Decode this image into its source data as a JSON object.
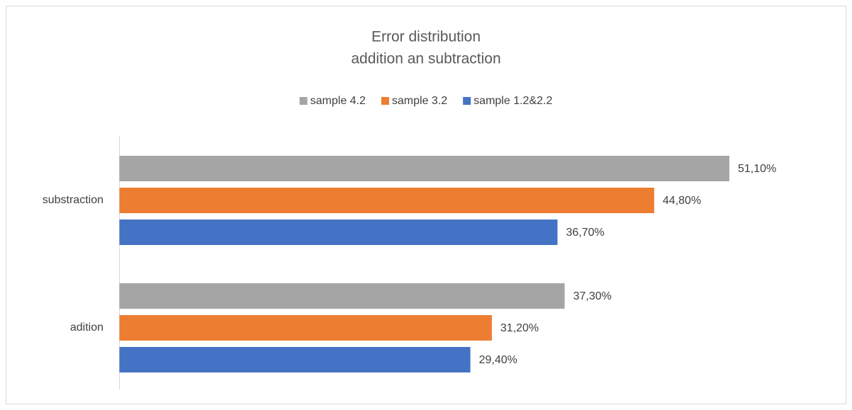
{
  "chart_data": {
    "type": "barh",
    "title": "Error distribution",
    "subtitle": "addition an subtraction",
    "categories": [
      "substraction",
      "adition"
    ],
    "series": [
      {
        "name": "sample 4.2",
        "color": "#a5a5a5",
        "values": [
          51.1,
          37.3
        ],
        "value_labels": [
          "51,10%",
          "37,30%"
        ]
      },
      {
        "name": "sample 3.2",
        "color": "#ed7d31",
        "values": [
          44.8,
          31.2
        ],
        "value_labels": [
          "44,80%",
          "31,20%"
        ]
      },
      {
        "name": "sample 1.2&2.2",
        "color": "#4472c4",
        "values": [
          36.7,
          29.4
        ],
        "value_labels": [
          "36,70%",
          "29,40%"
        ]
      }
    ],
    "legend": "top"
  }
}
